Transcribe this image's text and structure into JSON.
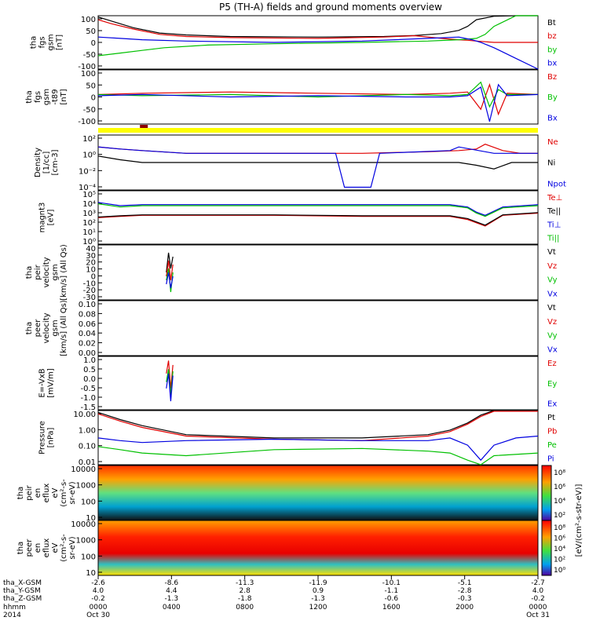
{
  "title": "P5 (TH-A) fields and ground moments overview",
  "colors": {
    "black": "#000000",
    "red": "#e00000",
    "green": "#00c000",
    "blue": "#0000e0",
    "yellow": "#ffff00",
    "darkred": "#8b0000"
  },
  "chart_data": [
    {
      "id": "panel-fgs-gsm",
      "type": "line",
      "ylabel_lines": [
        "tha",
        "fgs",
        "gsm",
        "[nT]"
      ],
      "ylim": [
        -100,
        100
      ],
      "yticks": [
        "100",
        "50",
        "0",
        "-50",
        "-100"
      ],
      "series": [
        {
          "name": "Bt",
          "color": "#000000",
          "x": [
            0,
            0.03,
            0.08,
            0.14,
            0.2,
            0.3,
            0.5,
            0.65,
            0.72,
            0.78,
            0.82,
            0.84,
            0.86,
            0.9,
            0.95,
            1.0
          ],
          "values": [
            95,
            80,
            55,
            35,
            28,
            22,
            20,
            22,
            26,
            33,
            45,
            60,
            85,
            98,
            100,
            100
          ]
        },
        {
          "name": "bz",
          "color": "#e00000",
          "x": [
            0,
            0.03,
            0.08,
            0.14,
            0.2,
            0.3,
            0.5,
            0.65,
            0.72,
            0.78,
            0.82,
            0.84,
            0.86,
            0.9,
            0.95,
            1.0
          ],
          "values": [
            85,
            70,
            50,
            30,
            22,
            18,
            15,
            20,
            25,
            15,
            10,
            8,
            5,
            0,
            0,
            0
          ]
        },
        {
          "name": "by",
          "color": "#00c000",
          "x": [
            0,
            0.05,
            0.1,
            0.15,
            0.25,
            0.4,
            0.6,
            0.75,
            0.82,
            0.86,
            0.88,
            0.9,
            0.95,
            1.0
          ],
          "values": [
            -50,
            -40,
            -30,
            -20,
            -10,
            -5,
            0,
            5,
            10,
            15,
            30,
            60,
            100,
            100
          ]
        },
        {
          "name": "bx",
          "color": "#0000e0",
          "x": [
            0,
            0.05,
            0.1,
            0.2,
            0.4,
            0.6,
            0.75,
            0.82,
            0.85,
            0.87,
            0.9,
            0.95,
            1.0
          ],
          "values": [
            20,
            15,
            10,
            5,
            0,
            5,
            15,
            20,
            10,
            0,
            -20,
            -60,
            -100
          ]
        }
      ]
    },
    {
      "id": "panel-fgs-gsm-t89",
      "type": "line",
      "ylabel_lines": [
        "tha",
        "fgs",
        "gsm",
        "-t89",
        "[nT]"
      ],
      "ylim": [
        -120,
        100
      ],
      "yticks": [
        "100",
        "50",
        "0",
        "-50",
        "-100"
      ],
      "series": [
        {
          "name": "Bz",
          "color": "#e00000",
          "x": [
            0,
            0.1,
            0.3,
            0.5,
            0.7,
            0.8,
            0.84,
            0.87,
            0.89,
            0.91,
            0.93,
            1.0
          ],
          "values": [
            0,
            5,
            10,
            5,
            0,
            5,
            10,
            -60,
            40,
            -80,
            5,
            0
          ]
        },
        {
          "name": "By",
          "color": "#00c000",
          "x": [
            0,
            0.1,
            0.3,
            0.5,
            0.7,
            0.8,
            0.84,
            0.87,
            0.89,
            0.91,
            0.93,
            1.0
          ],
          "values": [
            0,
            -5,
            0,
            -10,
            0,
            -5,
            0,
            50,
            -50,
            20,
            0,
            0
          ]
        },
        {
          "name": "Bx",
          "color": "#0000e0",
          "x": [
            0,
            0.1,
            0.3,
            0.5,
            0.7,
            0.8,
            0.84,
            0.87,
            0.89,
            0.91,
            0.93,
            1.0
          ],
          "values": [
            -5,
            0,
            -10,
            -5,
            -10,
            -10,
            -5,
            30,
            -110,
            40,
            -5,
            0
          ]
        }
      ]
    },
    {
      "id": "panel-density",
      "type": "line",
      "log_y": true,
      "ylabel_lines": [
        "Density",
        "[1/cc]",
        "[cm-3]"
      ],
      "ylim": [
        0.0001,
        100
      ],
      "yticks": [
        "10²",
        "10⁰",
        "10⁻²",
        "10⁻⁴"
      ],
      "series": [
        {
          "name": "Ne",
          "color": "#e00000",
          "x": [
            0,
            0.05,
            0.1,
            0.2,
            0.4,
            0.55,
            0.6,
            0.75,
            0.82,
            0.86,
            0.88,
            0.92,
            0.96,
            1.0
          ],
          "values": [
            5,
            3,
            2,
            1,
            1,
            1,
            1,
            1.5,
            2,
            3,
            10,
            2,
            1,
            1
          ]
        },
        {
          "name": "Ni",
          "color": "#000000",
          "x": [
            0,
            0.05,
            0.1,
            0.2,
            0.4,
            0.55,
            0.6,
            0.75,
            0.82,
            0.86,
            0.9,
            0.94,
            1.0
          ],
          "values": [
            0.5,
            0.2,
            0.1,
            0.1,
            0.1,
            0.1,
            0.1,
            0.1,
            0.1,
            0.05,
            0.02,
            0.1,
            0.1
          ]
        },
        {
          "name": "Npot",
          "color": "#0000e0",
          "x": [
            0,
            0.05,
            0.1,
            0.2,
            0.4,
            0.54,
            0.56,
            0.62,
            0.64,
            0.8,
            0.82,
            0.9,
            1.0
          ],
          "values": [
            5,
            3,
            2,
            1,
            1,
            1,
            0.0002,
            0.0002,
            1,
            2,
            5,
            1,
            1
          ]
        }
      ]
    },
    {
      "id": "panel-temperature",
      "type": "line",
      "log_y": true,
      "ylabel_lines": [
        "magnt3",
        "[eV]"
      ],
      "ylim": [
        1,
        100000
      ],
      "yticks": [
        "10⁵",
        "10⁴",
        "10³",
        "10²",
        "10¹",
        "10⁰"
      ],
      "series": [
        {
          "name": "Te⊥",
          "color": "#e00000",
          "x": [
            0,
            0.05,
            0.1,
            0.2,
            0.4,
            0.6,
            0.8,
            0.84,
            0.86,
            0.88,
            0.92,
            1.0
          ],
          "values": [
            300,
            400,
            500,
            500,
            500,
            400,
            400,
            200,
            100,
            50,
            500,
            800
          ]
        },
        {
          "name": "Te||",
          "color": "#000000",
          "x": [
            0,
            0.05,
            0.1,
            0.2,
            0.4,
            0.6,
            0.8,
            0.84,
            0.86,
            0.88,
            0.92,
            1.0
          ],
          "values": [
            350,
            450,
            550,
            550,
            550,
            450,
            450,
            250,
            120,
            60,
            550,
            900
          ]
        },
        {
          "name": "Ti⊥",
          "color": "#0000e0",
          "x": [
            0,
            0.05,
            0.1,
            0.2,
            0.4,
            0.6,
            0.8,
            0.84,
            0.86,
            0.88,
            0.92,
            1.0
          ],
          "values": [
            8000,
            4000,
            5000,
            5000,
            5000,
            5000,
            5000,
            3000,
            1000,
            500,
            3000,
            5000
          ]
        },
        {
          "name": "Ti||",
          "color": "#00c000",
          "x": [
            0,
            0.05,
            0.1,
            0.2,
            0.4,
            0.6,
            0.8,
            0.84,
            0.86,
            0.88,
            0.92,
            1.0
          ],
          "values": [
            6000,
            3000,
            4000,
            4000,
            4000,
            4000,
            4000,
            2500,
            800,
            400,
            2500,
            4000
          ]
        }
      ]
    },
    {
      "id": "panel-peir-velocity",
      "type": "line",
      "ylabel_lines": [
        "tha",
        "peir",
        "velocity",
        "gsm",
        "[km/s] (All Qs)"
      ],
      "ylim": [
        -30,
        40
      ],
      "yticks": [
        "40",
        "30",
        "20",
        "10",
        "0",
        "-10",
        "-20",
        "-30"
      ],
      "series": [
        {
          "name": "Vt",
          "color": "#000000",
          "x": [
            0.155,
            0.16,
            0.165,
            0.17
          ],
          "values": [
            5,
            30,
            10,
            25
          ]
        },
        {
          "name": "Vz",
          "color": "#e00000",
          "x": [
            0.155,
            0.16,
            0.165,
            0.17
          ],
          "values": [
            0,
            20,
            -5,
            15
          ]
        },
        {
          "name": "Vy",
          "color": "#00c000",
          "x": [
            0.155,
            0.16,
            0.165,
            0.17
          ],
          "values": [
            -5,
            10,
            -20,
            5
          ]
        },
        {
          "name": "Vx",
          "color": "#0000e0",
          "x": [
            0.155,
            0.16,
            0.165,
            0.17
          ],
          "values": [
            -10,
            5,
            -15,
            0
          ]
        }
      ]
    },
    {
      "id": "panel-peer-velocity",
      "type": "line",
      "ylabel_lines": [
        "tha",
        "peer",
        "velocity",
        "gsm",
        "[km/s] (All Qs)"
      ],
      "ylim": [
        0,
        0.12
      ],
      "yticks": [
        "0.10",
        "0.08",
        "0.06",
        "0.04",
        "0.02",
        "0.00"
      ],
      "series": [
        {
          "name": "Vt",
          "color": "#000000",
          "x": [],
          "values": []
        },
        {
          "name": "Vz",
          "color": "#e00000",
          "x": [],
          "values": []
        },
        {
          "name": "Vy",
          "color": "#00c000",
          "x": [],
          "values": []
        },
        {
          "name": "Vx",
          "color": "#0000e0",
          "x": [],
          "values": []
        }
      ]
    },
    {
      "id": "panel-efield",
      "type": "line",
      "ylabel_lines": [
        "E=-VxB",
        "[mV/m]"
      ],
      "ylim": [
        -1.5,
        1.0
      ],
      "yticks": [
        "1.0",
        "0.5",
        "0.0",
        "-0.5",
        "-1.0",
        "-1.5"
      ],
      "series": [
        {
          "name": "Ez",
          "color": "#e00000",
          "x": [
            0.155,
            0.16,
            0.165,
            0.17
          ],
          "values": [
            0.2,
            0.8,
            -0.5,
            0.6
          ]
        },
        {
          "name": "Ey",
          "color": "#00c000",
          "x": [
            0.155,
            0.16,
            0.165,
            0.17
          ],
          "values": [
            -0.2,
            0.4,
            -0.8,
            0.3
          ]
        },
        {
          "name": "Ex",
          "color": "#0000e0",
          "x": [
            0.155,
            0.16,
            0.165,
            0.17
          ],
          "values": [
            -0.5,
            0.2,
            -1.1,
            0.1
          ]
        }
      ]
    },
    {
      "id": "panel-pressure",
      "type": "line",
      "log_y": true,
      "ylabel_lines": [
        "Pressure",
        "[nPa]"
      ],
      "ylim": [
        0.005,
        20
      ],
      "yticks": [
        "10.00",
        "1.00",
        "0.10",
        "0.01"
      ],
      "series": [
        {
          "name": "Pt",
          "color": "#000000",
          "x": [
            0,
            0.05,
            0.1,
            0.2,
            0.4,
            0.6,
            0.75,
            0.8,
            0.84,
            0.87,
            0.9,
            1.0
          ],
          "values": [
            15,
            5,
            2,
            0.5,
            0.3,
            0.3,
            0.5,
            1,
            3,
            10,
            20,
            20
          ]
        },
        {
          "name": "Pb",
          "color": "#e00000",
          "x": [
            0,
            0.05,
            0.1,
            0.2,
            0.4,
            0.6,
            0.75,
            0.8,
            0.84,
            0.87,
            0.9,
            1.0
          ],
          "values": [
            12,
            4,
            1.5,
            0.4,
            0.25,
            0.2,
            0.4,
            0.8,
            2.5,
            8,
            18,
            18
          ]
        },
        {
          "name": "Pe",
          "color": "#00c000",
          "x": [
            0,
            0.05,
            0.1,
            0.2,
            0.4,
            0.6,
            0.75,
            0.8,
            0.84,
            0.87,
            0.9,
            1.0
          ],
          "values": [
            0.08,
            0.05,
            0.03,
            0.02,
            0.05,
            0.06,
            0.04,
            0.03,
            0.01,
            0.005,
            0.02,
            0.03
          ]
        },
        {
          "name": "Pi",
          "color": "#0000e0",
          "x": [
            0,
            0.05,
            0.1,
            0.2,
            0.4,
            0.6,
            0.75,
            0.8,
            0.84,
            0.87,
            0.9,
            0.95,
            1.0
          ],
          "values": [
            0.3,
            0.2,
            0.15,
            0.2,
            0.25,
            0.2,
            0.2,
            0.3,
            0.1,
            0.01,
            0.1,
            0.3,
            0.4
          ]
        }
      ]
    },
    {
      "id": "panel-peir-spectrogram",
      "type": "heatmap",
      "ylabel_lines": [
        "tha",
        "peir",
        "en",
        "eflux",
        "eV",
        "(cm²-s-",
        "sr-eV)"
      ],
      "ylim": [
        5,
        30000
      ],
      "yticks": [
        "10000",
        "1000",
        "100",
        "10"
      ]
    },
    {
      "id": "panel-peer-spectrogram",
      "type": "heatmap",
      "ylabel_lines": [
        "tha",
        "peer",
        "en",
        "eflux",
        "eV",
        "(cm²-s-",
        "sr-eV)"
      ],
      "ylim": [
        5,
        30000
      ],
      "yticks": [
        "10000",
        "1000",
        "100",
        "10"
      ]
    }
  ],
  "colorbar": {
    "top_labels": [
      "10⁸",
      "10⁶",
      "10⁴",
      "10²"
    ],
    "bottom_labels": [
      "10⁸",
      "10⁶",
      "10⁴",
      "10²",
      "10⁰"
    ],
    "label": "[eV/(cm²-s-str-eV)]"
  },
  "xaxis": {
    "row_labels": [
      "tha_X-GSM",
      "tha_Y-GSM",
      "tha_Z-GSM",
      "hhmm",
      "2014"
    ],
    "columns": [
      {
        "x": "-2.6",
        "y": "4.0",
        "z": "-0.2",
        "hhmm": "0000",
        "date": "Oct 30"
      },
      {
        "x": "-8.6",
        "y": "4.4",
        "z": "-1.3",
        "hhmm": "0400",
        "date": ""
      },
      {
        "x": "-11.3",
        "y": "2.8",
        "z": "-1.8",
        "hhmm": "0800",
        "date": ""
      },
      {
        "x": "-11.9",
        "y": "0.9",
        "z": "-1.3",
        "hhmm": "1200",
        "date": ""
      },
      {
        "x": "-10.1",
        "y": "-1.1",
        "z": "-0.6",
        "hhmm": "1600",
        "date": ""
      },
      {
        "x": "-5.1",
        "y": "-2.8",
        "z": "-0.3",
        "hhmm": "2000",
        "date": ""
      },
      {
        "x": "-2.7",
        "y": "4.0",
        "z": "-0.2",
        "hhmm": "0000",
        "date": "Oct 31"
      }
    ]
  }
}
